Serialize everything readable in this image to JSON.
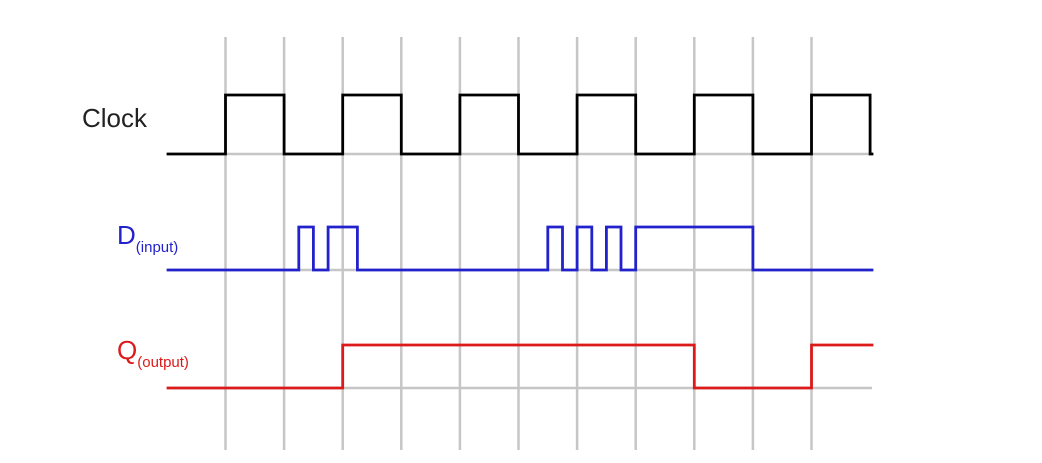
{
  "colors": {
    "grid": "#c6c6c6",
    "clock": "#000000",
    "input": "#2222cc",
    "output": "#dd1a1a",
    "clock_label": "#222222"
  },
  "signals": {
    "clock": {
      "label": "Clock",
      "edges": [
        0,
        1,
        2,
        3,
        4,
        5,
        6,
        7,
        8,
        9,
        10,
        11
      ],
      "initial": 0
    },
    "input": {
      "label": "D",
      "subscript": "(input)",
      "edges": [
        1.25,
        1.5,
        1.75,
        2.25,
        5.5,
        5.75,
        6.0,
        6.25,
        6.5,
        6.75,
        7.0,
        9.0
      ],
      "initial": 0
    },
    "output": {
      "label": "Q",
      "subscript": "(output)",
      "edges": [
        2.0,
        8.0,
        10.0
      ],
      "initial": 0
    }
  }
}
